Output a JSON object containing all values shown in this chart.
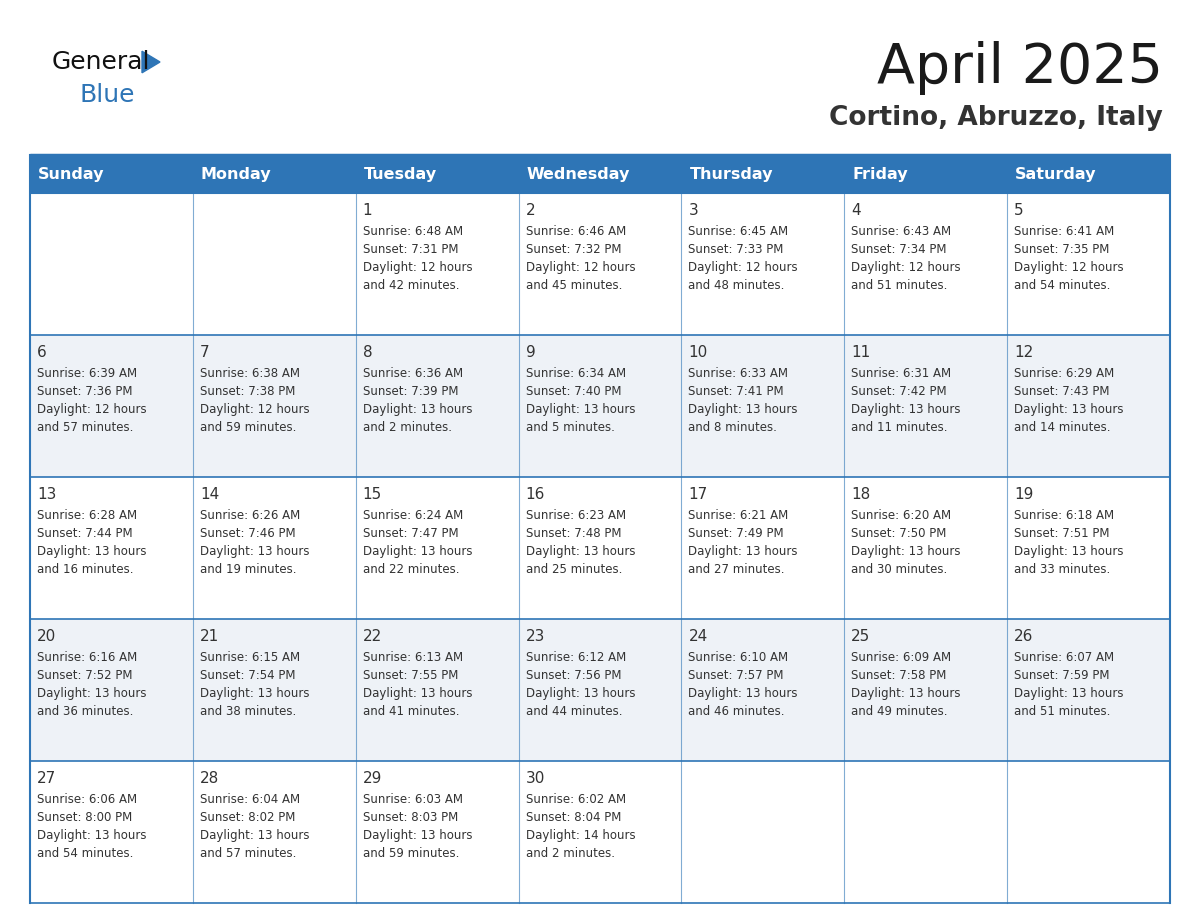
{
  "title": "April 2025",
  "subtitle": "Cortino, Abruzzo, Italy",
  "header_bg_color": "#2E75B6",
  "header_text_color": "#FFFFFF",
  "row_bg_color_odd": "#FFFFFF",
  "row_bg_color_even": "#EEF2F7",
  "border_color": "#2E75B6",
  "grid_line_color": "#2E75B6",
  "day_headers": [
    "Sunday",
    "Monday",
    "Tuesday",
    "Wednesday",
    "Thursday",
    "Friday",
    "Saturday"
  ],
  "title_color": "#1a1a1a",
  "subtitle_color": "#333333",
  "day_number_color": "#333333",
  "cell_text_color": "#333333",
  "weeks": [
    [
      {
        "day": null,
        "text": ""
      },
      {
        "day": null,
        "text": ""
      },
      {
        "day": 1,
        "text": "Sunrise: 6:48 AM\nSunset: 7:31 PM\nDaylight: 12 hours\nand 42 minutes."
      },
      {
        "day": 2,
        "text": "Sunrise: 6:46 AM\nSunset: 7:32 PM\nDaylight: 12 hours\nand 45 minutes."
      },
      {
        "day": 3,
        "text": "Sunrise: 6:45 AM\nSunset: 7:33 PM\nDaylight: 12 hours\nand 48 minutes."
      },
      {
        "day": 4,
        "text": "Sunrise: 6:43 AM\nSunset: 7:34 PM\nDaylight: 12 hours\nand 51 minutes."
      },
      {
        "day": 5,
        "text": "Sunrise: 6:41 AM\nSunset: 7:35 PM\nDaylight: 12 hours\nand 54 minutes."
      }
    ],
    [
      {
        "day": 6,
        "text": "Sunrise: 6:39 AM\nSunset: 7:36 PM\nDaylight: 12 hours\nand 57 minutes."
      },
      {
        "day": 7,
        "text": "Sunrise: 6:38 AM\nSunset: 7:38 PM\nDaylight: 12 hours\nand 59 minutes."
      },
      {
        "day": 8,
        "text": "Sunrise: 6:36 AM\nSunset: 7:39 PM\nDaylight: 13 hours\nand 2 minutes."
      },
      {
        "day": 9,
        "text": "Sunrise: 6:34 AM\nSunset: 7:40 PM\nDaylight: 13 hours\nand 5 minutes."
      },
      {
        "day": 10,
        "text": "Sunrise: 6:33 AM\nSunset: 7:41 PM\nDaylight: 13 hours\nand 8 minutes."
      },
      {
        "day": 11,
        "text": "Sunrise: 6:31 AM\nSunset: 7:42 PM\nDaylight: 13 hours\nand 11 minutes."
      },
      {
        "day": 12,
        "text": "Sunrise: 6:29 AM\nSunset: 7:43 PM\nDaylight: 13 hours\nand 14 minutes."
      }
    ],
    [
      {
        "day": 13,
        "text": "Sunrise: 6:28 AM\nSunset: 7:44 PM\nDaylight: 13 hours\nand 16 minutes."
      },
      {
        "day": 14,
        "text": "Sunrise: 6:26 AM\nSunset: 7:46 PM\nDaylight: 13 hours\nand 19 minutes."
      },
      {
        "day": 15,
        "text": "Sunrise: 6:24 AM\nSunset: 7:47 PM\nDaylight: 13 hours\nand 22 minutes."
      },
      {
        "day": 16,
        "text": "Sunrise: 6:23 AM\nSunset: 7:48 PM\nDaylight: 13 hours\nand 25 minutes."
      },
      {
        "day": 17,
        "text": "Sunrise: 6:21 AM\nSunset: 7:49 PM\nDaylight: 13 hours\nand 27 minutes."
      },
      {
        "day": 18,
        "text": "Sunrise: 6:20 AM\nSunset: 7:50 PM\nDaylight: 13 hours\nand 30 minutes."
      },
      {
        "day": 19,
        "text": "Sunrise: 6:18 AM\nSunset: 7:51 PM\nDaylight: 13 hours\nand 33 minutes."
      }
    ],
    [
      {
        "day": 20,
        "text": "Sunrise: 6:16 AM\nSunset: 7:52 PM\nDaylight: 13 hours\nand 36 minutes."
      },
      {
        "day": 21,
        "text": "Sunrise: 6:15 AM\nSunset: 7:54 PM\nDaylight: 13 hours\nand 38 minutes."
      },
      {
        "day": 22,
        "text": "Sunrise: 6:13 AM\nSunset: 7:55 PM\nDaylight: 13 hours\nand 41 minutes."
      },
      {
        "day": 23,
        "text": "Sunrise: 6:12 AM\nSunset: 7:56 PM\nDaylight: 13 hours\nand 44 minutes."
      },
      {
        "day": 24,
        "text": "Sunrise: 6:10 AM\nSunset: 7:57 PM\nDaylight: 13 hours\nand 46 minutes."
      },
      {
        "day": 25,
        "text": "Sunrise: 6:09 AM\nSunset: 7:58 PM\nDaylight: 13 hours\nand 49 minutes."
      },
      {
        "day": 26,
        "text": "Sunrise: 6:07 AM\nSunset: 7:59 PM\nDaylight: 13 hours\nand 51 minutes."
      }
    ],
    [
      {
        "day": 27,
        "text": "Sunrise: 6:06 AM\nSunset: 8:00 PM\nDaylight: 13 hours\nand 54 minutes."
      },
      {
        "day": 28,
        "text": "Sunrise: 6:04 AM\nSunset: 8:02 PM\nDaylight: 13 hours\nand 57 minutes."
      },
      {
        "day": 29,
        "text": "Sunrise: 6:03 AM\nSunset: 8:03 PM\nDaylight: 13 hours\nand 59 minutes."
      },
      {
        "day": 30,
        "text": "Sunrise: 6:02 AM\nSunset: 8:04 PM\nDaylight: 14 hours\nand 2 minutes."
      },
      {
        "day": null,
        "text": ""
      },
      {
        "day": null,
        "text": ""
      },
      {
        "day": null,
        "text": ""
      }
    ]
  ],
  "logo_text_general": "General",
  "logo_text_blue": "Blue",
  "logo_color_general": "#111111",
  "logo_color_blue": "#2E75B6",
  "logo_triangle_color": "#2E75B6",
  "fig_width": 11.88,
  "fig_height": 9.18,
  "dpi": 100
}
